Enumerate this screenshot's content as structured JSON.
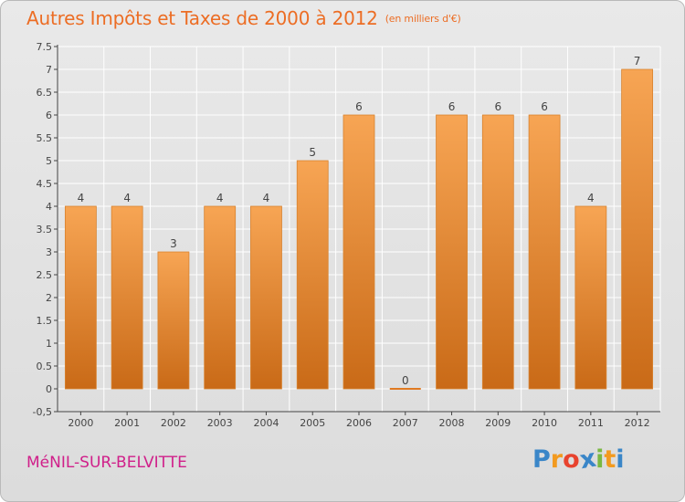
{
  "header": {
    "title": "Autres Impôts et Taxes de 2000 à 2012",
    "subtitle": "(en milliers d'€)"
  },
  "footer": {
    "town": "MéNIL-SUR-BELVITTE",
    "logo_letters": [
      "P",
      "r",
      "o",
      "x",
      "i",
      "t",
      "i"
    ],
    "logo_colors": [
      "#3a86c8",
      "#f29a1f",
      "#e8432e",
      "#3a86c8",
      "#7ab842",
      "#f29a1f",
      "#3a86c8"
    ]
  },
  "colors": {
    "bar_light": "#f7a554",
    "bar_dark": "#c96a17",
    "title": "#ec6d24",
    "town": "#d0208a"
  },
  "chart_data": {
    "type": "bar",
    "title": "Autres Impôts et Taxes de 2000 à 2012",
    "subtitle": "(en milliers d'€)",
    "categories": [
      "2000",
      "2001",
      "2002",
      "2003",
      "2004",
      "2005",
      "2006",
      "2007",
      "2008",
      "2009",
      "2010",
      "2011",
      "2012"
    ],
    "values": [
      4,
      4,
      3,
      4,
      4,
      5,
      6,
      0,
      6,
      6,
      6,
      4,
      7
    ],
    "data_labels": [
      "4",
      "4",
      "3",
      "4",
      "4",
      "5",
      "6",
      "0",
      "6",
      "6",
      "6",
      "4",
      "7"
    ],
    "ylim": [
      -0.5,
      7.5
    ],
    "yticks": [
      -0.5,
      0,
      0.5,
      1,
      1.5,
      2,
      2.5,
      3,
      3.5,
      4,
      4.5,
      5,
      5.5,
      6,
      6.5,
      7,
      7.5
    ],
    "ytick_labels": [
      "-0,5",
      "0",
      "0.5",
      "1",
      "1.5",
      "2",
      "2.5",
      "3",
      "3.5",
      "4",
      "4.5",
      "5",
      "5.5",
      "6",
      "6.5",
      "7",
      "7.5"
    ],
    "grid": true,
    "xlabel": "",
    "ylabel": ""
  }
}
